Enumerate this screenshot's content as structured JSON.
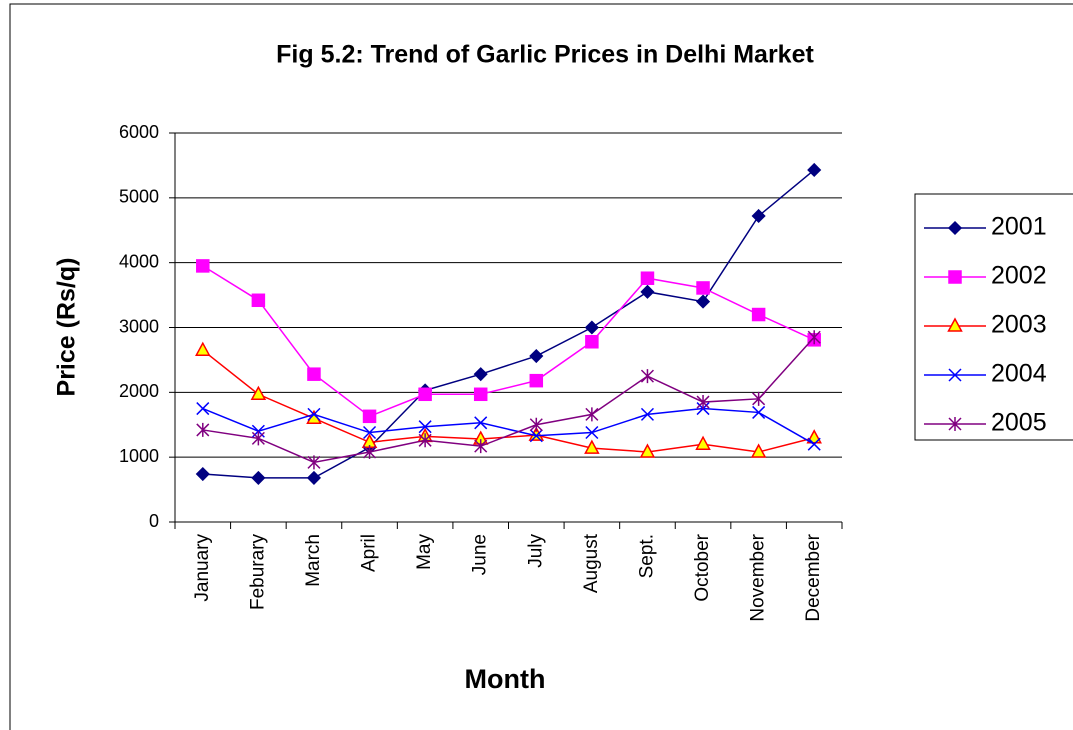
{
  "chart_data": {
    "type": "line",
    "title": "Fig 5.2: Trend of Garlic Prices in Delhi Market",
    "x_label": "Month",
    "y_label": "Price (Rs/q)",
    "categories": [
      "January",
      "Feburary",
      "March",
      "April",
      "May",
      "June",
      "July",
      "August",
      "Sept.",
      "October",
      "November",
      "December"
    ],
    "series": [
      {
        "name": "2001",
        "color": "#000080",
        "marker": "diamond",
        "values": [
          740,
          680,
          680,
          1150,
          2030,
          2280,
          2560,
          3000,
          3550,
          3400,
          4720,
          5430
        ]
      },
      {
        "name": "2002",
        "color": "#ff00ff",
        "marker": "square",
        "values": [
          3950,
          3420,
          2280,
          1630,
          1970,
          1970,
          2180,
          2780,
          3760,
          3610,
          3200,
          2810
        ]
      },
      {
        "name": "2003",
        "color": "#ff0000",
        "marker": "triangle",
        "marker_fill": "#ffff00",
        "values": [
          2650,
          1970,
          1600,
          1230,
          1320,
          1280,
          1340,
          1140,
          1080,
          1200,
          1080,
          1300
        ]
      },
      {
        "name": "2004",
        "color": "#0000ff",
        "marker": "x",
        "values": [
          1750,
          1400,
          1660,
          1380,
          1470,
          1530,
          1330,
          1380,
          1660,
          1750,
          1690,
          1200
        ]
      },
      {
        "name": "2005",
        "color": "#800080",
        "marker": "star",
        "values": [
          1420,
          1290,
          920,
          1080,
          1260,
          1170,
          1500,
          1660,
          2250,
          1850,
          1900,
          2850
        ]
      }
    ],
    "ylim": [
      0,
      6000
    ],
    "yticks": [
      0,
      1000,
      2000,
      3000,
      4000,
      5000,
      6000
    ],
    "grid": true,
    "legend": "right"
  }
}
